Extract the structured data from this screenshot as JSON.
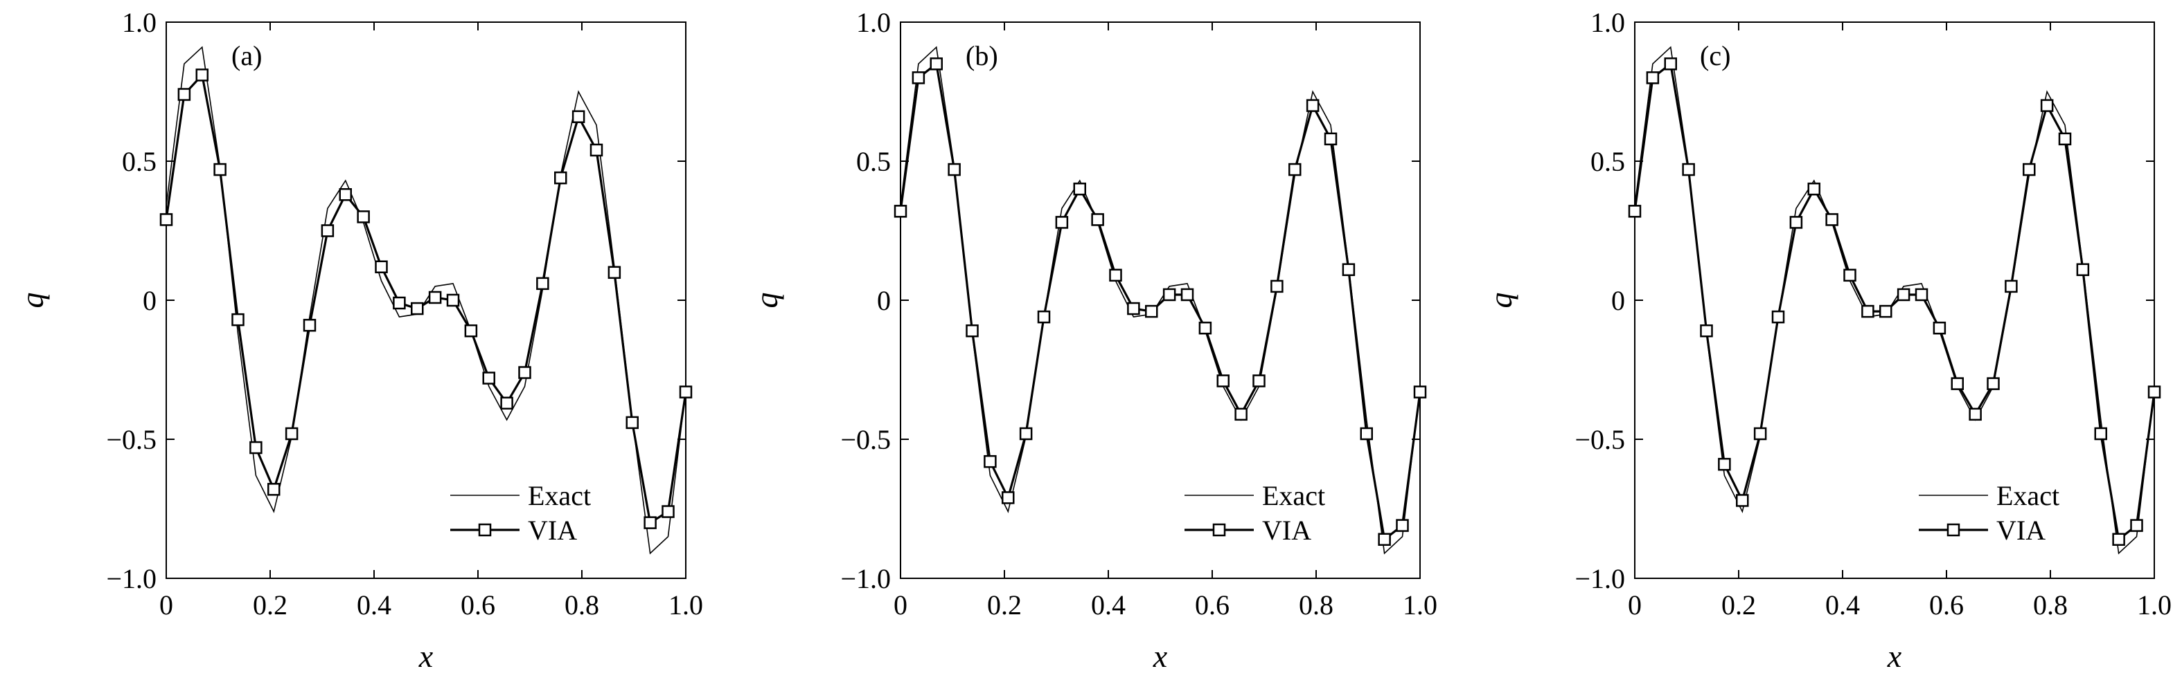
{
  "chart_data": [
    {
      "type": "line",
      "panel_label": "(a)",
      "xlabel": "x",
      "ylabel": "q",
      "xlim": [
        0,
        1.0
      ],
      "ylim": [
        -1.0,
        1.0
      ],
      "xticks": [
        "0",
        "0.2",
        "0.4",
        "0.6",
        "0.8",
        "1.0"
      ],
      "yticks": [
        "1.0",
        "0.5",
        "0",
        "−0.5",
        "−1.0"
      ],
      "grid": false,
      "legend_position": "bottom-right",
      "series": [
        {
          "name": "Exact",
          "style": "thin",
          "x": [
            0,
            0.0345,
            0.069,
            0.1035,
            0.138,
            0.1725,
            0.207,
            0.2415,
            0.276,
            0.3105,
            0.345,
            0.3795,
            0.414,
            0.4485,
            0.483,
            0.5175,
            0.552,
            0.5865,
            0.621,
            0.6555,
            0.69,
            0.7245,
            0.759,
            0.7935,
            0.828,
            0.8625,
            0.897,
            0.9315,
            0.966,
            1.0
          ],
          "y": [
            0.34,
            0.85,
            0.91,
            0.48,
            -0.12,
            -0.63,
            -0.76,
            -0.49,
            -0.06,
            0.33,
            0.43,
            0.28,
            0.07,
            -0.06,
            -0.05,
            0.05,
            0.06,
            -0.11,
            -0.31,
            -0.43,
            -0.31,
            0.04,
            0.45,
            0.75,
            0.63,
            0.12,
            -0.43,
            -0.91,
            -0.85,
            -0.32
          ]
        },
        {
          "name": "VIA",
          "style": "thick-square-markers",
          "x": [
            0,
            0.0345,
            0.069,
            0.1035,
            0.138,
            0.1725,
            0.207,
            0.2415,
            0.276,
            0.3105,
            0.345,
            0.3795,
            0.414,
            0.4485,
            0.483,
            0.5175,
            0.552,
            0.5865,
            0.621,
            0.6555,
            0.69,
            0.7245,
            0.759,
            0.7935,
            0.828,
            0.8625,
            0.897,
            0.9315,
            0.966,
            1.0
          ],
          "y": [
            0.29,
            0.74,
            0.81,
            0.47,
            -0.07,
            -0.53,
            -0.68,
            -0.48,
            -0.09,
            0.25,
            0.38,
            0.3,
            0.12,
            -0.01,
            -0.03,
            0.01,
            0.0,
            -0.11,
            -0.28,
            -0.37,
            -0.26,
            0.06,
            0.44,
            0.66,
            0.54,
            0.1,
            -0.44,
            -0.8,
            -0.76,
            -0.33
          ]
        }
      ]
    },
    {
      "type": "line",
      "panel_label": "(b)",
      "xlabel": "x",
      "ylabel": "q",
      "xlim": [
        0,
        1.0
      ],
      "ylim": [
        -1.0,
        1.0
      ],
      "xticks": [
        "0",
        "0.2",
        "0.4",
        "0.6",
        "0.8",
        "1.0"
      ],
      "yticks": [
        "1.0",
        "0.5",
        "0",
        "−0.5",
        "−1.0"
      ],
      "grid": false,
      "legend_position": "bottom-right",
      "series": [
        {
          "name": "Exact",
          "style": "thin",
          "x": [
            0,
            0.0345,
            0.069,
            0.1035,
            0.138,
            0.1725,
            0.207,
            0.2415,
            0.276,
            0.3105,
            0.345,
            0.3795,
            0.414,
            0.4485,
            0.483,
            0.5175,
            0.552,
            0.5865,
            0.621,
            0.6555,
            0.69,
            0.7245,
            0.759,
            0.7935,
            0.828,
            0.8625,
            0.897,
            0.9315,
            0.966,
            1.0
          ],
          "y": [
            0.34,
            0.85,
            0.91,
            0.48,
            -0.12,
            -0.63,
            -0.76,
            -0.49,
            -0.06,
            0.33,
            0.43,
            0.28,
            0.07,
            -0.06,
            -0.05,
            0.05,
            0.06,
            -0.11,
            -0.31,
            -0.43,
            -0.31,
            0.04,
            0.45,
            0.75,
            0.63,
            0.12,
            -0.43,
            -0.91,
            -0.85,
            -0.32
          ]
        },
        {
          "name": "VIA",
          "style": "thick-square-markers",
          "x": [
            0,
            0.0345,
            0.069,
            0.1035,
            0.138,
            0.1725,
            0.207,
            0.2415,
            0.276,
            0.3105,
            0.345,
            0.3795,
            0.414,
            0.4485,
            0.483,
            0.5175,
            0.552,
            0.5865,
            0.621,
            0.6555,
            0.69,
            0.7245,
            0.759,
            0.7935,
            0.828,
            0.8625,
            0.897,
            0.9315,
            0.966,
            1.0
          ],
          "y": [
            0.32,
            0.8,
            0.85,
            0.47,
            -0.11,
            -0.58,
            -0.71,
            -0.48,
            -0.06,
            0.28,
            0.4,
            0.29,
            0.09,
            -0.03,
            -0.04,
            0.02,
            0.02,
            -0.1,
            -0.29,
            -0.41,
            -0.29,
            0.05,
            0.47,
            0.7,
            0.58,
            0.11,
            -0.48,
            -0.86,
            -0.81,
            -0.33
          ]
        }
      ]
    },
    {
      "type": "line",
      "panel_label": "(c)",
      "xlabel": "x",
      "ylabel": "q",
      "xlim": [
        0,
        1.0
      ],
      "ylim": [
        -1.0,
        1.0
      ],
      "xticks": [
        "0",
        "0.2",
        "0.4",
        "0.6",
        "0.8",
        "1.0"
      ],
      "yticks": [
        "1.0",
        "0.5",
        "0",
        "−0.5",
        "−1.0"
      ],
      "grid": false,
      "legend_position": "bottom-right",
      "series": [
        {
          "name": "Exact",
          "style": "thin",
          "x": [
            0,
            0.0345,
            0.069,
            0.1035,
            0.138,
            0.1725,
            0.207,
            0.2415,
            0.276,
            0.3105,
            0.345,
            0.3795,
            0.414,
            0.4485,
            0.483,
            0.5175,
            0.552,
            0.5865,
            0.621,
            0.6555,
            0.69,
            0.7245,
            0.759,
            0.7935,
            0.828,
            0.8625,
            0.897,
            0.9315,
            0.966,
            1.0
          ],
          "y": [
            0.34,
            0.85,
            0.91,
            0.48,
            -0.12,
            -0.63,
            -0.76,
            -0.49,
            -0.06,
            0.33,
            0.43,
            0.28,
            0.07,
            -0.06,
            -0.05,
            0.05,
            0.06,
            -0.11,
            -0.31,
            -0.43,
            -0.31,
            0.04,
            0.45,
            0.75,
            0.63,
            0.12,
            -0.43,
            -0.91,
            -0.85,
            -0.32
          ]
        },
        {
          "name": "VIA",
          "style": "thick-square-markers",
          "x": [
            0,
            0.0345,
            0.069,
            0.1035,
            0.138,
            0.1725,
            0.207,
            0.2415,
            0.276,
            0.3105,
            0.345,
            0.3795,
            0.414,
            0.4485,
            0.483,
            0.5175,
            0.552,
            0.5865,
            0.621,
            0.6555,
            0.69,
            0.7245,
            0.759,
            0.7935,
            0.828,
            0.8625,
            0.897,
            0.9315,
            0.966,
            1.0
          ],
          "y": [
            0.32,
            0.8,
            0.85,
            0.47,
            -0.11,
            -0.59,
            -0.72,
            -0.48,
            -0.06,
            0.28,
            0.4,
            0.29,
            0.09,
            -0.04,
            -0.04,
            0.02,
            0.02,
            -0.1,
            -0.3,
            -0.41,
            -0.3,
            0.05,
            0.47,
            0.7,
            0.58,
            0.11,
            -0.48,
            -0.86,
            -0.81,
            -0.33
          ]
        }
      ]
    }
  ]
}
